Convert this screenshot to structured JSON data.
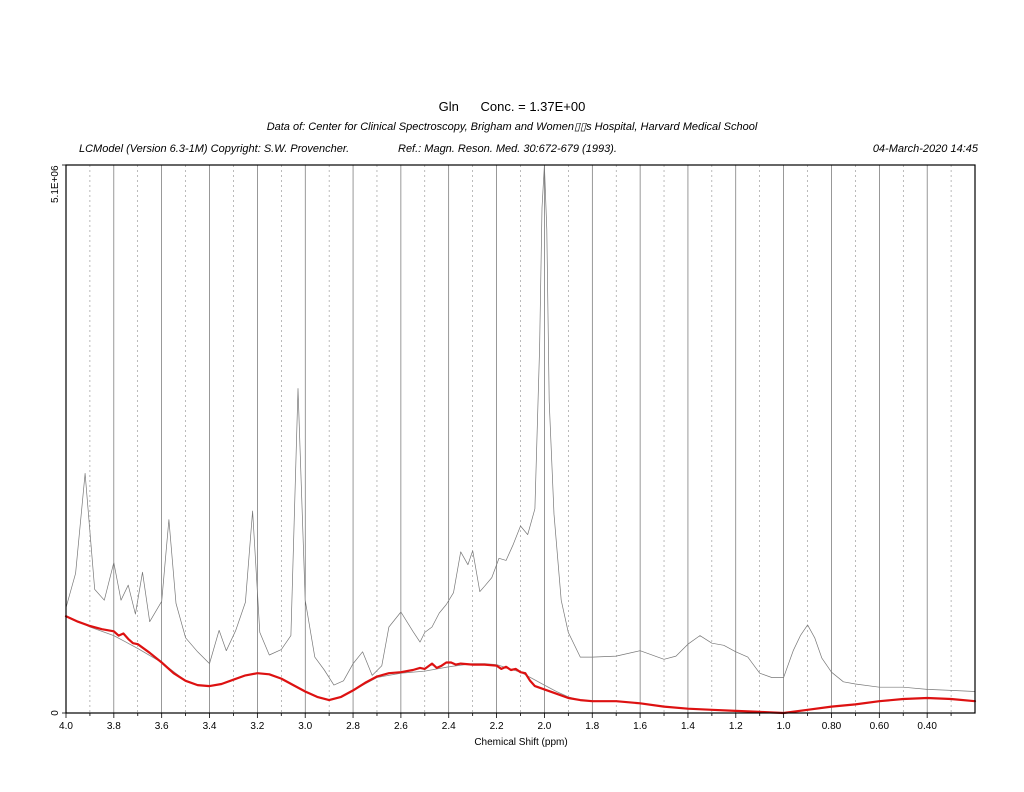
{
  "header": {
    "title": "Gln      Conc. = 1.37E+00",
    "subtitle": "Data of: Center for Clinical Spectroscopy, Brigham and Women▯▯s Hospital, Harvard Medical School",
    "credit": "LCModel (Version 6.3-1M) Copyright: S.W. Provencher.",
    "reference": "Ref.: Magn. Reson. Med. 30:672-679 (1993).",
    "timestamp": "04-March-2020  14:45"
  },
  "chart_data": {
    "type": "line",
    "title": "",
    "xlabel": "Chemical Shift (ppm)",
    "ylabel": "",
    "xlim": [
      4.0,
      0.2
    ],
    "x_reversed": true,
    "ylim": [
      0,
      5100000
    ],
    "y_tick_labels": [
      "0",
      "5.1E+06"
    ],
    "x_tick_labels": [
      "4.0",
      "3.8",
      "3.6",
      "3.4",
      "3.2",
      "3.0",
      "2.8",
      "2.6",
      "2.4",
      "2.2",
      "2.0",
      "1.8",
      "1.6",
      "1.4",
      "1.2",
      "1.0",
      "0.80",
      "0.60",
      "0.40"
    ],
    "grid": true,
    "colors": {
      "spectrum": "#777777",
      "fit": "#dd1111",
      "baseline": "#888888",
      "grid": "#555555"
    },
    "series": [
      {
        "role": "spectrum",
        "x": [
          4.0,
          3.96,
          3.92,
          3.88,
          3.84,
          3.8,
          3.77,
          3.74,
          3.71,
          3.68,
          3.65,
          3.6,
          3.57,
          3.54,
          3.5,
          3.45,
          3.4,
          3.36,
          3.33,
          3.29,
          3.25,
          3.22,
          3.19,
          3.15,
          3.1,
          3.06,
          3.03,
          3.0,
          2.96,
          2.92,
          2.88,
          2.84,
          2.8,
          2.76,
          2.72,
          2.68,
          2.65,
          2.6,
          2.55,
          2.52,
          2.5,
          2.47,
          2.44,
          2.41,
          2.38,
          2.35,
          2.32,
          2.3,
          2.27,
          2.25,
          2.22,
          2.19,
          2.16,
          2.13,
          2.1,
          2.07,
          2.04,
          2.02,
          2.01,
          2.0,
          1.99,
          1.98,
          1.96,
          1.93,
          1.9,
          1.85,
          1.8,
          1.7,
          1.6,
          1.5,
          1.45,
          1.4,
          1.35,
          1.3,
          1.25,
          1.2,
          1.15,
          1.1,
          1.05,
          1.0,
          0.96,
          0.93,
          0.9,
          0.87,
          0.84,
          0.8,
          0.75,
          0.7,
          0.6,
          0.5,
          0.4,
          0.3,
          0.2
        ],
        "y": [
          980000,
          1300000,
          2230000,
          1150000,
          1050000,
          1400000,
          1050000,
          1190000,
          920000,
          1310000,
          850000,
          1040000,
          1800000,
          1020000,
          700000,
          570000,
          460000,
          770000,
          580000,
          770000,
          1030000,
          1880000,
          750000,
          540000,
          590000,
          720000,
          3020000,
          1050000,
          520000,
          400000,
          260000,
          300000,
          460000,
          570000,
          350000,
          440000,
          800000,
          940000,
          760000,
          660000,
          750000,
          800000,
          930000,
          1010000,
          1120000,
          1500000,
          1380000,
          1510000,
          1130000,
          1180000,
          1260000,
          1440000,
          1420000,
          1570000,
          1740000,
          1660000,
          1900000,
          3400000,
          4700000,
          5100000,
          4500000,
          2900000,
          1850000,
          1050000,
          750000,
          520000,
          520000,
          530000,
          580000,
          500000,
          530000,
          640000,
          720000,
          650000,
          630000,
          570000,
          520000,
          370000,
          330000,
          330000,
          580000,
          720000,
          820000,
          700000,
          510000,
          380000,
          290000,
          270000,
          240000,
          240000,
          220000,
          210000,
          200000
        ]
      },
      {
        "role": "fit",
        "x": [
          4.0,
          3.95,
          3.9,
          3.85,
          3.8,
          3.78,
          3.76,
          3.74,
          3.72,
          3.7,
          3.65,
          3.6,
          3.55,
          3.5,
          3.45,
          3.4,
          3.35,
          3.3,
          3.25,
          3.2,
          3.15,
          3.1,
          3.05,
          3.0,
          2.95,
          2.9,
          2.85,
          2.8,
          2.75,
          2.7,
          2.65,
          2.6,
          2.55,
          2.52,
          2.5,
          2.47,
          2.45,
          2.43,
          2.41,
          2.39,
          2.37,
          2.35,
          2.3,
          2.25,
          2.2,
          2.18,
          2.16,
          2.14,
          2.12,
          2.1,
          2.08,
          2.06,
          2.04,
          2.0,
          1.95,
          1.9,
          1.85,
          1.8,
          1.7,
          1.6,
          1.5,
          1.4,
          1.3,
          1.2,
          1.1,
          1.0,
          0.9,
          0.8,
          0.7,
          0.6,
          0.5,
          0.4,
          0.3,
          0.2
        ],
        "y": [
          900000,
          850000,
          810000,
          780000,
          760000,
          720000,
          740000,
          690000,
          650000,
          640000,
          560000,
          470000,
          370000,
          300000,
          260000,
          250000,
          270000,
          310000,
          350000,
          370000,
          360000,
          320000,
          260000,
          200000,
          150000,
          120000,
          150000,
          210000,
          280000,
          340000,
          370000,
          380000,
          400000,
          420000,
          410000,
          460000,
          420000,
          440000,
          470000,
          470000,
          450000,
          460000,
          450000,
          450000,
          440000,
          410000,
          430000,
          400000,
          410000,
          380000,
          370000,
          300000,
          250000,
          220000,
          180000,
          140000,
          120000,
          110000,
          110000,
          90000,
          60000,
          40000,
          30000,
          20000,
          10000,
          0,
          30000,
          60000,
          80000,
          110000,
          130000,
          140000,
          130000,
          110000
        ]
      },
      {
        "role": "baseline",
        "x": [
          4.0,
          3.9,
          3.8,
          3.7,
          3.6,
          3.5,
          3.45,
          3.4,
          3.35,
          3.3,
          3.25,
          3.2,
          3.15,
          3.1,
          3.05,
          3.0,
          2.95,
          2.9,
          2.85,
          2.8,
          2.7,
          2.6,
          2.5,
          2.4,
          2.3,
          2.25,
          2.2,
          2.1,
          2.05,
          2.0,
          1.95,
          1.9,
          1.85,
          1.8,
          1.7,
          1.6,
          1.5,
          1.4,
          1.3,
          1.2,
          1.1,
          1.0,
          0.9,
          0.8,
          0.7,
          0.6,
          0.5,
          0.4,
          0.3,
          0.2
        ],
        "y": [
          900000,
          800000,
          720000,
          600000,
          470000,
          300000,
          260000,
          250000,
          270000,
          310000,
          350000,
          370000,
          360000,
          320000,
          260000,
          200000,
          150000,
          120000,
          150000,
          210000,
          330000,
          370000,
          390000,
          430000,
          460000,
          460000,
          450000,
          380000,
          320000,
          260000,
          200000,
          150000,
          120000,
          110000,
          110000,
          90000,
          60000,
          40000,
          30000,
          20000,
          10000,
          0,
          30000,
          60000,
          80000,
          110000,
          130000,
          140000,
          130000,
          110000
        ]
      }
    ]
  }
}
